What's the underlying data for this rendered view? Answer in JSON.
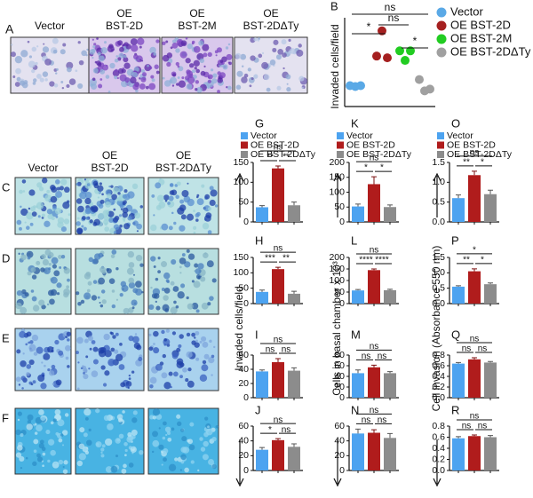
{
  "figure": {
    "panel_a_label": "A",
    "panel_a_columns": [
      [
        "Vector"
      ],
      [
        "OE",
        "BST-2D"
      ],
      [
        "OE",
        "BST-2M"
      ],
      [
        "OE",
        "BST-2DΔTy"
      ]
    ],
    "image_rows": [
      "C",
      "D",
      "E",
      "F"
    ],
    "row_columns": [
      [
        "Vector"
      ],
      [
        "OE",
        "BST-2D"
      ],
      [
        "OE",
        "BST-2DΔTy"
      ]
    ],
    "shared_ylabels": [
      "Invaded cells/field",
      "Cells in basal chamber x 10³",
      "Cell invasion (Absorbance 550 nm)"
    ]
  },
  "chart_data": [
    {
      "type": "scatter",
      "label": "B",
      "ylabel": "Invaded cells/field",
      "ylim": [
        0,
        100
      ],
      "series": [
        {
          "name": "Vector",
          "color": "#5aa9e6",
          "values": [
            24,
            23,
            24
          ]
        },
        {
          "name": "OE BST-2D",
          "color": "#a52020",
          "values": [
            58,
            87,
            56
          ]
        },
        {
          "name": "OE BST-2M",
          "color": "#22cc22",
          "values": [
            64,
            53,
            64
          ]
        },
        {
          "name": "OE BST-2DΔTy",
          "color": "#a0a0a0",
          "values": [
            31,
            18,
            20
          ]
        }
      ],
      "annotations": [
        "ns",
        "*",
        "ns",
        "*"
      ]
    },
    {
      "type": "bar",
      "label": "G",
      "legend": [
        "Vector",
        "OE BST-2D",
        "OE BST-2DΔTy"
      ],
      "values": [
        37,
        135,
        42
      ],
      "errors": [
        4,
        6,
        8
      ],
      "colors": [
        "#4da3f0",
        "#b01c1c",
        "#8c8c8c"
      ],
      "ylim": [
        0,
        150
      ],
      "yticks": [
        0,
        50,
        100,
        150
      ],
      "annotations": [
        "ns",
        "**",
        "**"
      ]
    },
    {
      "type": "bar",
      "label": "H",
      "values": [
        38,
        112,
        32
      ],
      "errors": [
        6,
        6,
        8
      ],
      "colors": [
        "#4da3f0",
        "#b01c1c",
        "#8c8c8c"
      ],
      "ylim": [
        0,
        150
      ],
      "yticks": [
        0,
        50,
        100,
        150
      ],
      "annotations": [
        "ns",
        "***",
        "**"
      ]
    },
    {
      "type": "bar",
      "label": "I",
      "values": [
        37,
        50,
        38
      ],
      "errors": [
        2,
        5,
        4
      ],
      "colors": [
        "#4da3f0",
        "#b01c1c",
        "#8c8c8c"
      ],
      "ylim": [
        0,
        60
      ],
      "yticks": [
        0,
        20,
        40,
        60
      ],
      "annotations": [
        "ns",
        "ns",
        "ns"
      ]
    },
    {
      "type": "bar",
      "label": "J",
      "values": [
        28,
        41,
        32
      ],
      "errors": [
        3,
        2,
        4
      ],
      "colors": [
        "#4da3f0",
        "#b01c1c",
        "#8c8c8c"
      ],
      "ylim": [
        0,
        60
      ],
      "yticks": [
        0,
        20,
        40,
        60
      ],
      "annotations": [
        "ns",
        "*",
        "ns"
      ]
    },
    {
      "type": "bar",
      "label": "K",
      "legend": [
        "Vector",
        "OE BST-2D",
        "OE BST-2DΔTy"
      ],
      "values": [
        52,
        127,
        50
      ],
      "errors": [
        8,
        25,
        7
      ],
      "colors": [
        "#4da3f0",
        "#b01c1c",
        "#8c8c8c"
      ],
      "ylim": [
        0,
        200
      ],
      "yticks": [
        0,
        50,
        100,
        150,
        200
      ],
      "annotations": [
        "ns",
        "*",
        "*"
      ]
    },
    {
      "type": "bar",
      "label": "L",
      "values": [
        57,
        145,
        58
      ],
      "errors": [
        4,
        5,
        4
      ],
      "colors": [
        "#4da3f0",
        "#b01c1c",
        "#8c8c8c"
      ],
      "ylim": [
        0,
        200
      ],
      "yticks": [
        0,
        50,
        100,
        150,
        200
      ],
      "annotations": [
        "ns",
        "****",
        "****"
      ]
    },
    {
      "type": "bar",
      "label": "M",
      "values": [
        46,
        57,
        46
      ],
      "errors": [
        6,
        4,
        3
      ],
      "colors": [
        "#4da3f0",
        "#b01c1c",
        "#8c8c8c"
      ],
      "ylim": [
        0,
        80
      ],
      "yticks": [
        0,
        20,
        40,
        60,
        80
      ],
      "annotations": [
        "ns",
        "ns",
        "ns"
      ]
    },
    {
      "type": "bar",
      "label": "N",
      "values": [
        50,
        51,
        44
      ],
      "errors": [
        6,
        4,
        6
      ],
      "colors": [
        "#4da3f0",
        "#b01c1c",
        "#8c8c8c"
      ],
      "ylim": [
        0,
        60
      ],
      "yticks": [
        0,
        20,
        40,
        60
      ],
      "annotations": [
        "ns",
        "ns",
        "ns"
      ]
    },
    {
      "type": "bar",
      "label": "O",
      "legend": [
        "Vector",
        "OE BST-2D",
        "OE BST-2DΔTy"
      ],
      "values": [
        0.6,
        1.18,
        0.7
      ],
      "errors": [
        0.08,
        0.1,
        0.1
      ],
      "colors": [
        "#4da3f0",
        "#b01c1c",
        "#8c8c8c"
      ],
      "ylim": [
        0,
        1.5
      ],
      "yticks": [
        {
          "value": 0,
          "label": "0.0"
        },
        0.5,
        {
          "value": 1,
          "label": "1.0"
        },
        1.5
      ],
      "annotations": [
        "ns",
        "**",
        "*"
      ]
    },
    {
      "type": "bar",
      "label": "P",
      "values": [
        0.55,
        1.05,
        0.63
      ],
      "errors": [
        0.03,
        0.08,
        0.04
      ],
      "colors": [
        "#4da3f0",
        "#b01c1c",
        "#8c8c8c"
      ],
      "ylim": [
        0,
        1.5
      ],
      "yticks": [
        {
          "value": 0,
          "label": "0.0"
        },
        0.5,
        {
          "value": 1,
          "label": "1.0"
        },
        1.5
      ],
      "annotations": [
        "*",
        "**",
        "*"
      ]
    },
    {
      "type": "bar",
      "label": "Q",
      "values": [
        0.64,
        0.72,
        0.66
      ],
      "errors": [
        0.02,
        0.03,
        0.02
      ],
      "colors": [
        "#4da3f0",
        "#b01c1c",
        "#8c8c8c"
      ],
      "ylim": [
        0,
        0.8
      ],
      "yticks": [
        {
          "value": 0,
          "label": "0.0"
        },
        0.2,
        0.4,
        0.6,
        0.8
      ],
      "annotations": [
        "ns",
        "ns",
        "ns"
      ]
    },
    {
      "type": "bar",
      "label": "R",
      "values": [
        0.58,
        0.62,
        0.6
      ],
      "errors": [
        0.03,
        0.02,
        0.03
      ],
      "colors": [
        "#4da3f0",
        "#b01c1c",
        "#8c8c8c"
      ],
      "ylim": [
        0,
        0.8
      ],
      "yticks": [
        {
          "value": 0,
          "label": "0.0"
        },
        0.2,
        0.4,
        0.6,
        0.8
      ],
      "annotations": [
        "ns",
        "ns",
        "ns"
      ]
    }
  ]
}
